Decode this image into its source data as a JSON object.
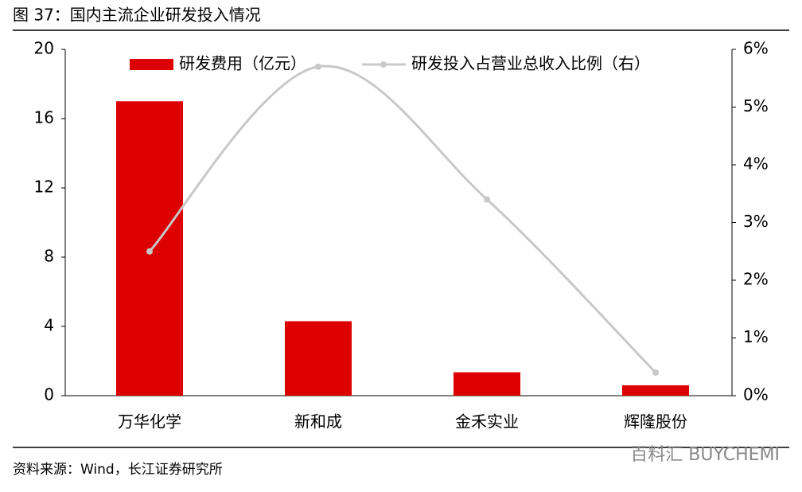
{
  "title": "图 37：国内主流企业研发投入情况",
  "source": "资料来源：Wind，长江证券研究所",
  "watermark": "百料汇 BUYCHEMI",
  "chart_data": {
    "type": "bar_line",
    "categories": [
      "万华化学",
      "新和成",
      "金禾实业",
      "辉隆股份"
    ],
    "series": [
      {
        "name": "研发费用（亿元）",
        "type": "bar",
        "color": "#dd0000",
        "values": [
          17.0,
          4.3,
          1.35,
          0.6
        ]
      },
      {
        "name": "研发投入占营业总收入比例（右）",
        "type": "line",
        "axis": "y2",
        "color": "#c8c8c8",
        "values": [
          2.5,
          5.7,
          3.4,
          0.4
        ]
      }
    ],
    "ylim": [
      0,
      20
    ],
    "yticks": [
      0,
      4,
      8,
      12,
      16,
      20
    ],
    "y2lim": [
      0,
      6
    ],
    "y2ticks": [
      {
        "value": 0,
        "label": "0%"
      },
      {
        "value": 1,
        "label": "1%"
      },
      {
        "value": 2,
        "label": "2%"
      },
      {
        "value": 3,
        "label": "3%"
      },
      {
        "value": 4,
        "label": "4%"
      },
      {
        "value": 5,
        "label": "5%"
      },
      {
        "value": 6,
        "label": "6%"
      }
    ],
    "legend": "top"
  }
}
